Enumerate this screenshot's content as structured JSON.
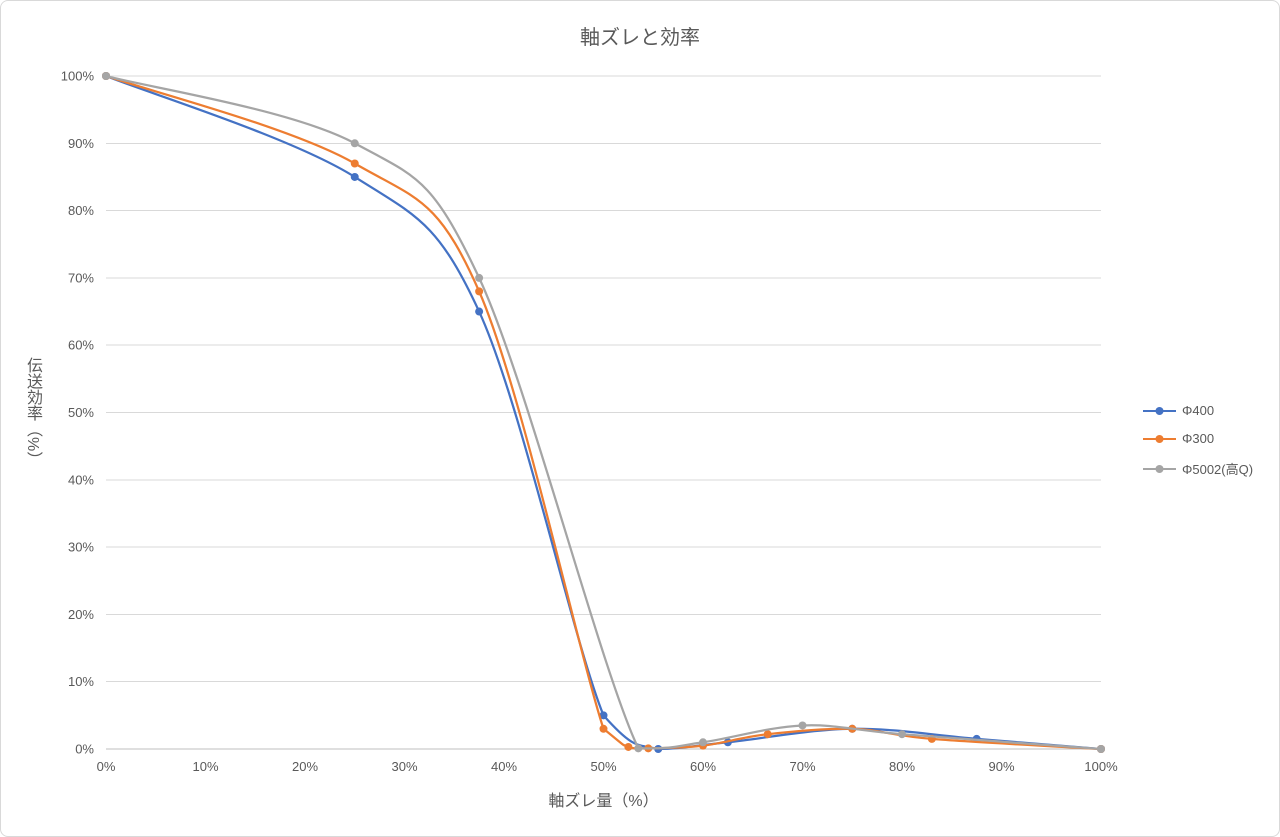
{
  "chart_data": {
    "type": "line",
    "title": "軸ズレと効率",
    "xlabel": "軸ズレ量（%）",
    "ylabel": "伝送効率（%）",
    "xlim": [
      0,
      100
    ],
    "ylim": [
      0,
      100
    ],
    "grid": true,
    "legend_position": "right",
    "x_tick_labels": [
      "0%",
      "10%",
      "20%",
      "30%",
      "40%",
      "50%",
      "60%",
      "70%",
      "80%",
      "90%",
      "100%"
    ],
    "y_tick_labels": [
      "0%",
      "10%",
      "20%",
      "30%",
      "40%",
      "50%",
      "60%",
      "70%",
      "80%",
      "90%",
      "100%"
    ],
    "series": [
      {
        "name": "Φ400",
        "color": "#4472C4",
        "points": [
          [
            0,
            100
          ],
          [
            25,
            85
          ],
          [
            37.5,
            65
          ],
          [
            50,
            5
          ],
          [
            55.5,
            0
          ],
          [
            62.5,
            1
          ],
          [
            75,
            3
          ],
          [
            87.5,
            1.5
          ],
          [
            100,
            0
          ]
        ]
      },
      {
        "name": "Φ300",
        "color": "#ED7D31",
        "points": [
          [
            0,
            100
          ],
          [
            25,
            87
          ],
          [
            37.5,
            68
          ],
          [
            50,
            3
          ],
          [
            52.5,
            0.3
          ],
          [
            54.5,
            0.1
          ],
          [
            60,
            0.5
          ],
          [
            66.5,
            2.2
          ],
          [
            75,
            3
          ],
          [
            83,
            1.5
          ],
          [
            100,
            0
          ]
        ]
      },
      {
        "name": "Φ5002(高Q)",
        "color": "#A5A5A5",
        "points": [
          [
            0,
            100
          ],
          [
            25,
            90
          ],
          [
            37.5,
            70
          ],
          [
            53.5,
            0.1
          ],
          [
            60,
            1
          ],
          [
            70,
            3.5
          ],
          [
            80,
            2.2
          ],
          [
            100,
            0
          ]
        ]
      }
    ]
  },
  "style": {
    "grid_color": "#D9D9D9",
    "axis_color": "#BFBFBF",
    "text_color": "#595959",
    "background": "#FFFFFF",
    "border_color": "#D9D9D9"
  }
}
